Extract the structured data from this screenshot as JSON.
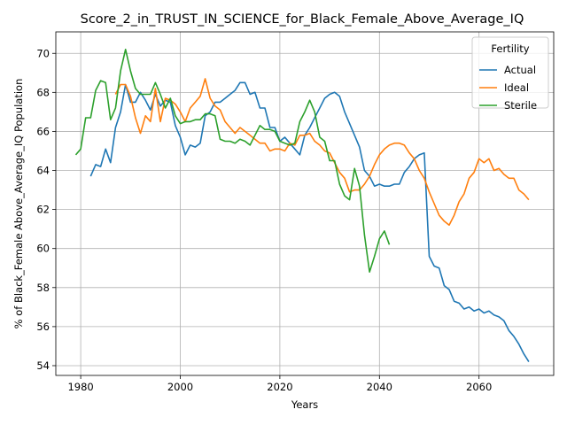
{
  "chart_data": {
    "type": "line",
    "title": "Score_2_in_TRUST_IN_SCIENCE_for_Black_Female_Above_Average_IQ",
    "xlabel": "Years",
    "ylabel": "% of Black_Female Above_Average_IQ Population",
    "xlim": [
      1975,
      2075
    ],
    "ylim": [
      53.5,
      71.1
    ],
    "xticks": [
      1980,
      2000,
      2020,
      2040,
      2060
    ],
    "yticks": [
      54,
      56,
      58,
      60,
      62,
      64,
      66,
      68,
      70
    ],
    "grid": true,
    "legend": {
      "title": "Fertility",
      "placement": "top-right"
    },
    "series": [
      {
        "name": "Actual",
        "color": "#1f77b4",
        "x": [
          1982,
          1983,
          1984,
          1985,
          1986,
          1987,
          1988,
          1989,
          1990,
          1991,
          1992,
          1993,
          1994,
          1995,
          1996,
          1997,
          1998,
          1999,
          2000,
          2001,
          2002,
          2003,
          2004,
          2005,
          2006,
          2007,
          2008,
          2009,
          2010,
          2011,
          2012,
          2013,
          2014,
          2015,
          2016,
          2017,
          2018,
          2019,
          2020,
          2021,
          2022,
          2023,
          2024,
          2025,
          2026,
          2027,
          2028,
          2029,
          2030,
          2031,
          2032,
          2033,
          2034,
          2035,
          2036,
          2037,
          2038,
          2039,
          2040,
          2041,
          2042,
          2043,
          2044,
          2045,
          2046,
          2047,
          2048,
          2049,
          2050,
          2051,
          2052,
          2053,
          2054,
          2055,
          2056,
          2057,
          2058,
          2059,
          2060,
          2061,
          2062,
          2063,
          2064,
          2065,
          2066,
          2067,
          2068,
          2069,
          2070
        ],
        "values": [
          63.7,
          64.3,
          64.2,
          65.1,
          64.4,
          66.2,
          67.0,
          68.4,
          67.5,
          67.5,
          68.0,
          67.6,
          67.1,
          67.9,
          67.3,
          67.6,
          67.5,
          66.3,
          65.7,
          64.8,
          65.3,
          65.2,
          65.4,
          66.8,
          67.0,
          67.5,
          67.5,
          67.7,
          67.9,
          68.1,
          68.5,
          68.5,
          67.9,
          68.0,
          67.2,
          67.2,
          66.2,
          66.2,
          65.5,
          65.7,
          65.4,
          65.1,
          64.8,
          65.8,
          66.2,
          66.7,
          67.2,
          67.7,
          67.9,
          68.0,
          67.8,
          67.0,
          66.4,
          65.8,
          65.2,
          64.0,
          63.7,
          63.2,
          63.3,
          63.2,
          63.2,
          63.3,
          63.3,
          63.9,
          64.2,
          64.6,
          64.8,
          64.9,
          59.6,
          59.1,
          59.0,
          58.1,
          57.9,
          57.3,
          57.2,
          56.9,
          57.0,
          56.8,
          56.9,
          56.7,
          56.8,
          56.6,
          56.5,
          56.3,
          55.8,
          55.5,
          55.1,
          54.6,
          54.2
        ]
      },
      {
        "name": "Ideal",
        "color": "#ff7f0e",
        "x": [
          1987,
          1988,
          1989,
          1990,
          1991,
          1992,
          1993,
          1994,
          1995,
          1996,
          1997,
          1998,
          1999,
          2000,
          2001,
          2002,
          2003,
          2004,
          2005,
          2006,
          2007,
          2008,
          2009,
          2010,
          2011,
          2012,
          2013,
          2014,
          2015,
          2016,
          2017,
          2018,
          2019,
          2020,
          2021,
          2022,
          2023,
          2024,
          2025,
          2026,
          2027,
          2028,
          2029,
          2030,
          2031,
          2032,
          2033,
          2034,
          2035,
          2036,
          2037,
          2038,
          2039,
          2040,
          2041,
          2042,
          2043,
          2044,
          2045,
          2046,
          2047,
          2048,
          2049,
          2050,
          2051,
          2052,
          2053,
          2054,
          2055,
          2056,
          2057,
          2058,
          2059,
          2060,
          2061,
          2062,
          2063,
          2064,
          2065,
          2066,
          2067,
          2068,
          2069,
          2070
        ],
        "values": [
          67.9,
          68.4,
          68.4,
          67.8,
          66.7,
          65.9,
          66.8,
          66.5,
          68.2,
          66.5,
          67.7,
          67.6,
          67.4,
          67.0,
          66.5,
          67.2,
          67.5,
          67.8,
          68.7,
          67.7,
          67.3,
          67.1,
          66.5,
          66.2,
          65.9,
          66.2,
          66.0,
          65.8,
          65.6,
          65.4,
          65.4,
          65.0,
          65.1,
          65.1,
          65.0,
          65.4,
          65.3,
          65.8,
          65.8,
          65.9,
          65.5,
          65.3,
          65.0,
          64.9,
          64.4,
          63.9,
          63.6,
          62.9,
          63.0,
          63.0,
          63.3,
          63.7,
          64.3,
          64.8,
          65.1,
          65.3,
          65.4,
          65.4,
          65.3,
          64.9,
          64.6,
          64.0,
          63.6,
          62.9,
          62.3,
          61.7,
          61.4,
          61.2,
          61.7,
          62.4,
          62.8,
          63.6,
          63.9,
          64.6,
          64.4,
          64.6,
          64.0,
          64.1,
          63.8,
          63.6,
          63.6,
          63.0,
          62.8,
          62.5
        ]
      },
      {
        "name": "Sterile",
        "color": "#2ca02c",
        "x": [
          1979,
          1980,
          1981,
          1982,
          1983,
          1984,
          1985,
          1986,
          1987,
          1988,
          1989,
          1990,
          1991,
          1992,
          1993,
          1994,
          1995,
          1996,
          1997,
          1998,
          1999,
          2000,
          2001,
          2002,
          2003,
          2004,
          2005,
          2006,
          2007,
          2008,
          2009,
          2010,
          2011,
          2012,
          2013,
          2014,
          2015,
          2016,
          2017,
          2018,
          2019,
          2020,
          2021,
          2022,
          2023,
          2024,
          2025,
          2026,
          2027,
          2028,
          2029,
          2030,
          2031,
          2032,
          2033,
          2034,
          2035,
          2036,
          2037,
          2038,
          2039,
          2040,
          2041,
          2042
        ],
        "values": [
          64.8,
          65.1,
          66.7,
          66.7,
          68.1,
          68.6,
          68.5,
          66.6,
          67.2,
          69.1,
          70.2,
          69.1,
          68.2,
          67.9,
          67.9,
          67.9,
          68.5,
          67.9,
          67.2,
          67.7,
          66.8,
          66.4,
          66.5,
          66.5,
          66.6,
          66.6,
          66.9,
          66.9,
          66.8,
          65.6,
          65.5,
          65.5,
          65.4,
          65.6,
          65.5,
          65.3,
          65.8,
          66.3,
          66.1,
          66.1,
          66.0,
          65.5,
          65.4,
          65.3,
          65.4,
          66.5,
          67.0,
          67.6,
          67.0,
          65.7,
          65.5,
          64.5,
          64.5,
          63.3,
          62.7,
          62.5,
          64.1,
          63.2,
          60.7,
          58.8,
          59.6,
          60.5,
          60.9,
          60.2
        ]
      }
    ]
  }
}
